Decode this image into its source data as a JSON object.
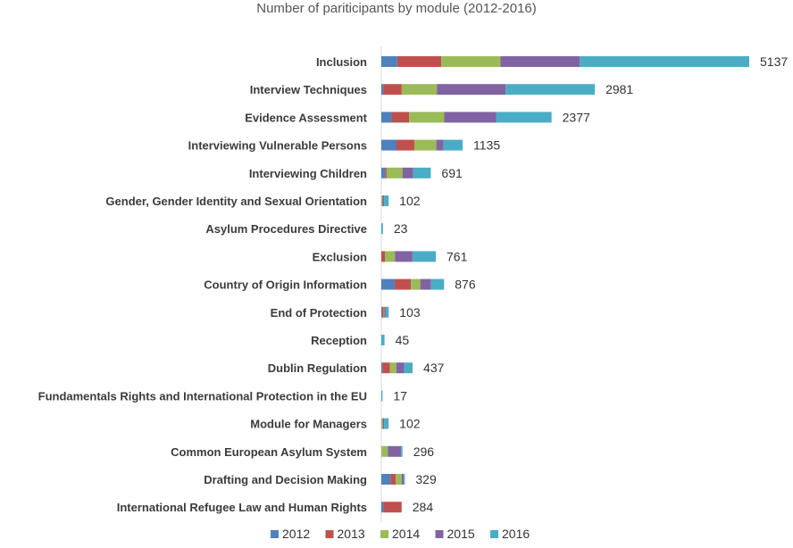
{
  "chart_data": {
    "type": "bar",
    "orientation": "horizontal",
    "stacked": true,
    "title": "Number of pariticipants by module (2012-2016)",
    "xlabel": "",
    "ylabel": "",
    "xlim": [
      0,
      5137
    ],
    "grid": false,
    "legend_position": "bottom",
    "categories": [
      "Inclusion",
      "Interview Techniques",
      "Evidence Assessment",
      "Interviewing Vulnerable Persons",
      "Interviewing Children",
      "Gender, Gender Identity and Sexual Orientation",
      "Asylum Procedures Directive",
      "Exclusion",
      "Country of Origin Information",
      "End of Protection",
      "Reception",
      "Dublin Regulation",
      "Fundamentals Rights and International Protection in the EU",
      "Module for Managers",
      "Common European Asylum System",
      "Drafting and Decision Making",
      "International Refugee Law and Human Rights"
    ],
    "series": [
      {
        "name": "2012",
        "color": "#4f81bd",
        "values": [
          222,
          30,
          144,
          212,
          52,
          0,
          0,
          0,
          186,
          12,
          0,
          15,
          0,
          0,
          0,
          128,
          30
        ]
      },
      {
        "name": "2013",
        "color": "#c0504d",
        "values": [
          615,
          255,
          245,
          249,
          22,
          0,
          0,
          50,
          227,
          20,
          0,
          105,
          0,
          0,
          0,
          74,
          254
        ]
      },
      {
        "name": "2014",
        "color": "#9bbb59",
        "values": [
          827,
          490,
          490,
          307,
          221,
          15,
          0,
          140,
          131,
          12,
          0,
          90,
          0,
          20,
          90,
          84,
          0
        ]
      },
      {
        "name": "2015",
        "color": "#8064a2",
        "values": [
          1106,
          962,
          723,
          102,
          150,
          25,
          0,
          245,
          150,
          19,
          0,
          110,
          0,
          20,
          186,
          28,
          0
        ]
      },
      {
        "name": "2016",
        "color": "#4bacc6",
        "values": [
          2367,
          1244,
          775,
          265,
          246,
          62,
          23,
          326,
          182,
          40,
          45,
          117,
          17,
          62,
          20,
          15,
          0
        ]
      }
    ],
    "totals": [
      "5137",
      "2981",
      "2377",
      "1135",
      "691",
      "102",
      "23",
      "761",
      "876",
      "103",
      "45",
      "437",
      "17",
      "102",
      "296",
      "329",
      "284"
    ]
  }
}
